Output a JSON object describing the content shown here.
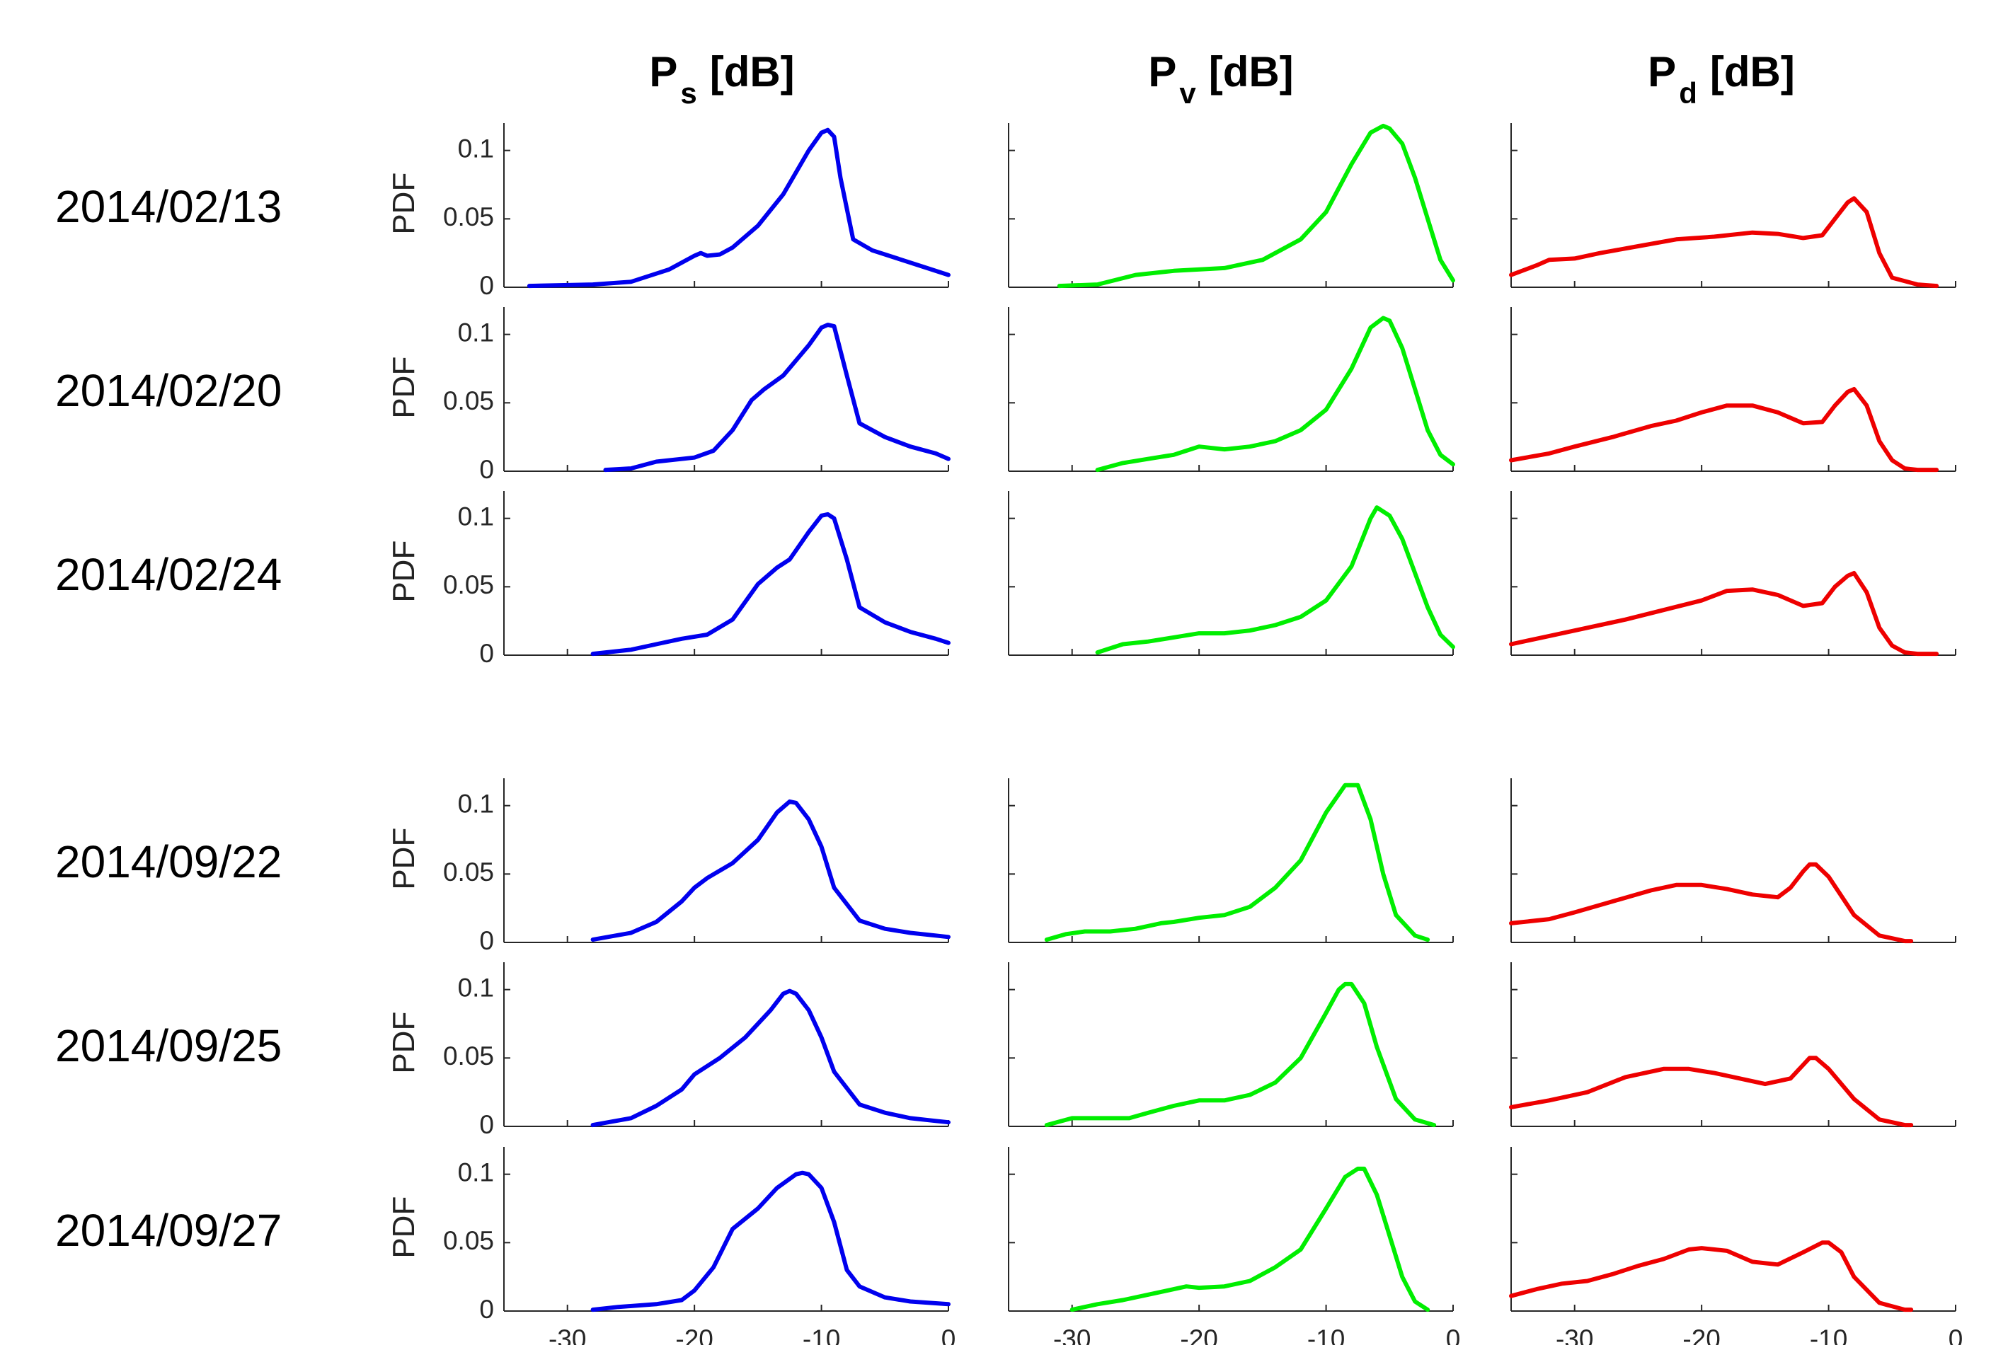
{
  "chart_data": {
    "type": "line",
    "column_titles": [
      {
        "base": "P",
        "sub": "s",
        "unit": "[dB]"
      },
      {
        "base": "P",
        "sub": "v",
        "unit": "[dB]"
      },
      {
        "base": "P",
        "sub": "d",
        "unit": "[dB]"
      }
    ],
    "row_labels": [
      "2014/02/13",
      "2014/02/20",
      "2014/02/24",
      "2014/09/22",
      "2014/09/25",
      "2014/09/27"
    ],
    "ylabel": "PDF",
    "xlim": [
      -35,
      0
    ],
    "ylim": [
      0,
      0.12
    ],
    "xticks": [
      -30,
      -20,
      -10,
      0
    ],
    "xtick_labels": [
      "-30",
      "-20",
      "-10",
      "0"
    ],
    "yticks": [
      0,
      0.05,
      0.1
    ],
    "ytick_labels": [
      "0",
      "0.05",
      "0.1"
    ],
    "grid": false,
    "series_colors": [
      "#0000ee",
      "#00ee00",
      "#ee0000"
    ],
    "panels": [
      [
        {
          "x": [
            -33,
            -28,
            -25,
            -23,
            -22,
            -20,
            -19.5,
            -19,
            -18,
            -17,
            -15,
            -13,
            -11,
            -10,
            -9.5,
            -9,
            -8.5,
            -7.5,
            -6,
            -4,
            -2,
            0
          ],
          "y": [
            0.001,
            0.002,
            0.004,
            0.01,
            0.013,
            0.023,
            0.025,
            0.023,
            0.024,
            0.029,
            0.045,
            0.068,
            0.1,
            0.113,
            0.115,
            0.11,
            0.08,
            0.035,
            0.027,
            0.021,
            0.015,
            0.009
          ]
        },
        {
          "x": [
            -31,
            -28,
            -25,
            -22,
            -18,
            -15,
            -12,
            -10,
            -8,
            -6.5,
            -5.5,
            -5,
            -4,
            -3,
            -2,
            -1,
            0
          ],
          "y": [
            0.001,
            0.002,
            0.009,
            0.012,
            0.014,
            0.02,
            0.035,
            0.055,
            0.09,
            0.113,
            0.118,
            0.116,
            0.105,
            0.08,
            0.05,
            0.02,
            0.005
          ]
        },
        {
          "x": [
            -35,
            -33,
            -32,
            -30,
            -28,
            -25,
            -22,
            -19,
            -16,
            -14,
            -12,
            -10.5,
            -9.5,
            -8.5,
            -8,
            -7,
            -6,
            -5,
            -3,
            -1.5
          ],
          "y": [
            0.009,
            0.016,
            0.02,
            0.021,
            0.025,
            0.03,
            0.035,
            0.037,
            0.04,
            0.039,
            0.036,
            0.038,
            0.05,
            0.062,
            0.065,
            0.055,
            0.025,
            0.007,
            0.002,
            0.001
          ]
        }
      ],
      [
        {
          "x": [
            -27,
            -25,
            -23,
            -20,
            -18.5,
            -17,
            -15.5,
            -14.5,
            -13,
            -11,
            -10,
            -9.5,
            -9,
            -8,
            -7,
            -5,
            -3,
            -1,
            0
          ],
          "y": [
            0.001,
            0.002,
            0.007,
            0.01,
            0.015,
            0.03,
            0.052,
            0.06,
            0.07,
            0.092,
            0.105,
            0.107,
            0.106,
            0.07,
            0.035,
            0.025,
            0.018,
            0.013,
            0.009
          ]
        },
        {
          "x": [
            -28,
            -26,
            -24,
            -22,
            -21,
            -20,
            -18,
            -16,
            -14,
            -12,
            -10,
            -8,
            -6.5,
            -5.5,
            -5,
            -4,
            -3,
            -2,
            -1,
            0
          ],
          "y": [
            0.001,
            0.006,
            0.009,
            0.012,
            0.015,
            0.018,
            0.016,
            0.018,
            0.022,
            0.03,
            0.045,
            0.075,
            0.105,
            0.112,
            0.11,
            0.09,
            0.06,
            0.03,
            0.012,
            0.005
          ]
        },
        {
          "x": [
            -35,
            -32,
            -30,
            -27,
            -24,
            -22,
            -20,
            -18,
            -16,
            -14,
            -12,
            -10.5,
            -9.5,
            -8.5,
            -8,
            -7,
            -6,
            -5,
            -4,
            -3,
            -1.5
          ],
          "y": [
            0.008,
            0.013,
            0.018,
            0.025,
            0.033,
            0.037,
            0.043,
            0.048,
            0.048,
            0.043,
            0.035,
            0.036,
            0.048,
            0.058,
            0.06,
            0.048,
            0.022,
            0.008,
            0.002,
            0.001,
            0.001
          ]
        }
      ],
      [
        {
          "x": [
            -28,
            -25,
            -23,
            -21,
            -19,
            -17,
            -15,
            -13.5,
            -12.5,
            -11,
            -10,
            -9.5,
            -9,
            -8,
            -7,
            -5,
            -3,
            -1,
            0
          ],
          "y": [
            0.001,
            0.004,
            0.008,
            0.012,
            0.015,
            0.026,
            0.052,
            0.064,
            0.07,
            0.09,
            0.102,
            0.103,
            0.1,
            0.07,
            0.035,
            0.024,
            0.017,
            0.012,
            0.009
          ]
        },
        {
          "x": [
            -28,
            -26,
            -24,
            -22,
            -20,
            -18,
            -16,
            -14,
            -12,
            -10,
            -8,
            -6.5,
            -6,
            -5,
            -4,
            -3,
            -2,
            -1,
            0
          ],
          "y": [
            0.002,
            0.008,
            0.01,
            0.013,
            0.016,
            0.016,
            0.018,
            0.022,
            0.028,
            0.04,
            0.065,
            0.1,
            0.108,
            0.102,
            0.085,
            0.06,
            0.035,
            0.015,
            0.006
          ]
        },
        {
          "x": [
            -35,
            -32,
            -29,
            -26,
            -23,
            -20,
            -18,
            -16,
            -14,
            -12,
            -10.5,
            -9.5,
            -8.5,
            -8,
            -7,
            -6,
            -5,
            -4,
            -3,
            -1.5
          ],
          "y": [
            0.008,
            0.014,
            0.02,
            0.026,
            0.033,
            0.04,
            0.047,
            0.048,
            0.044,
            0.036,
            0.038,
            0.05,
            0.058,
            0.06,
            0.046,
            0.02,
            0.007,
            0.002,
            0.001,
            0.001
          ]
        }
      ],
      [
        {
          "x": [
            -28,
            -25,
            -23,
            -21,
            -20,
            -19,
            -17,
            -15,
            -13.5,
            -12.5,
            -12,
            -11,
            -10,
            -9,
            -7,
            -5,
            -3,
            -1,
            0
          ],
          "y": [
            0.002,
            0.007,
            0.015,
            0.03,
            0.04,
            0.047,
            0.058,
            0.075,
            0.095,
            0.103,
            0.102,
            0.09,
            0.07,
            0.04,
            0.016,
            0.01,
            0.007,
            0.005,
            0.004
          ]
        },
        {
          "x": [
            -32,
            -30.5,
            -29,
            -27,
            -25,
            -23,
            -22,
            -20,
            -18,
            -16,
            -14,
            -12,
            -10,
            -8.5,
            -7.5,
            -6.5,
            -5.5,
            -4.5,
            -3,
            -2
          ],
          "y": [
            0.002,
            0.006,
            0.008,
            0.008,
            0.01,
            0.014,
            0.015,
            0.018,
            0.02,
            0.026,
            0.04,
            0.06,
            0.095,
            0.115,
            0.115,
            0.09,
            0.05,
            0.02,
            0.005,
            0.002
          ]
        },
        {
          "x": [
            -35,
            -32,
            -30,
            -27,
            -24,
            -22,
            -20,
            -18,
            -16,
            -14,
            -13,
            -12,
            -11.5,
            -11,
            -10,
            -8,
            -6,
            -4,
            -3.5
          ],
          "y": [
            0.014,
            0.017,
            0.022,
            0.03,
            0.038,
            0.042,
            0.042,
            0.039,
            0.035,
            0.033,
            0.04,
            0.052,
            0.057,
            0.057,
            0.048,
            0.02,
            0.005,
            0.001,
            0.001
          ]
        }
      ],
      [
        {
          "x": [
            -28,
            -25,
            -23,
            -21,
            -20,
            -18,
            -16,
            -14,
            -13,
            -12.5,
            -12,
            -11,
            -10,
            -9,
            -7,
            -5,
            -3,
            -1,
            0
          ],
          "y": [
            0.001,
            0.006,
            0.015,
            0.027,
            0.038,
            0.05,
            0.065,
            0.085,
            0.097,
            0.099,
            0.097,
            0.085,
            0.065,
            0.04,
            0.016,
            0.01,
            0.006,
            0.004,
            0.003
          ]
        },
        {
          "x": [
            -32,
            -30,
            -28,
            -25.5,
            -24,
            -22,
            -20,
            -18,
            -16,
            -14,
            -12,
            -10,
            -9,
            -8.5,
            -8,
            -7,
            -6,
            -4.5,
            -3,
            -1.5
          ],
          "y": [
            0.001,
            0.006,
            0.006,
            0.006,
            0.01,
            0.015,
            0.019,
            0.019,
            0.023,
            0.032,
            0.05,
            0.083,
            0.1,
            0.104,
            0.104,
            0.09,
            0.058,
            0.02,
            0.005,
            0.001
          ]
        },
        {
          "x": [
            -35,
            -32,
            -29,
            -26,
            -23,
            -21,
            -19,
            -17,
            -15,
            -13,
            -12,
            -11.5,
            -11,
            -10,
            -8,
            -6,
            -4,
            -3.5
          ],
          "y": [
            0.014,
            0.019,
            0.025,
            0.036,
            0.042,
            0.042,
            0.039,
            0.035,
            0.031,
            0.035,
            0.045,
            0.05,
            0.05,
            0.042,
            0.02,
            0.005,
            0.001,
            0.001
          ]
        }
      ],
      [
        {
          "x": [
            -28,
            -26,
            -23,
            -21,
            -20,
            -18.5,
            -17,
            -15,
            -13.5,
            -12,
            -11.5,
            -11,
            -10,
            -9,
            -8,
            -7,
            -5,
            -3,
            0
          ],
          "y": [
            0.001,
            0.003,
            0.005,
            0.008,
            0.015,
            0.032,
            0.06,
            0.075,
            0.09,
            0.1,
            0.101,
            0.1,
            0.09,
            0.065,
            0.03,
            0.018,
            0.01,
            0.007,
            0.005
          ]
        },
        {
          "x": [
            -30,
            -28,
            -26,
            -24,
            -22,
            -21,
            -20,
            -18,
            -16,
            -14,
            -12,
            -10,
            -8.5,
            -7.5,
            -7,
            -6,
            -5,
            -4,
            -3,
            -2
          ],
          "y": [
            0.001,
            0.005,
            0.008,
            0.012,
            0.016,
            0.018,
            0.017,
            0.018,
            0.022,
            0.032,
            0.045,
            0.075,
            0.098,
            0.104,
            0.104,
            0.085,
            0.055,
            0.025,
            0.007,
            0.001
          ]
        },
        {
          "x": [
            -35,
            -33,
            -31,
            -29,
            -27,
            -25,
            -23,
            -21,
            -20,
            -18,
            -16,
            -14,
            -12,
            -10.5,
            -10,
            -9,
            -8,
            -6,
            -4,
            -3.5
          ],
          "y": [
            0.011,
            0.016,
            0.02,
            0.022,
            0.027,
            0.033,
            0.038,
            0.045,
            0.046,
            0.044,
            0.036,
            0.034,
            0.043,
            0.05,
            0.05,
            0.043,
            0.025,
            0.006,
            0.001,
            0.001
          ]
        }
      ]
    ]
  }
}
